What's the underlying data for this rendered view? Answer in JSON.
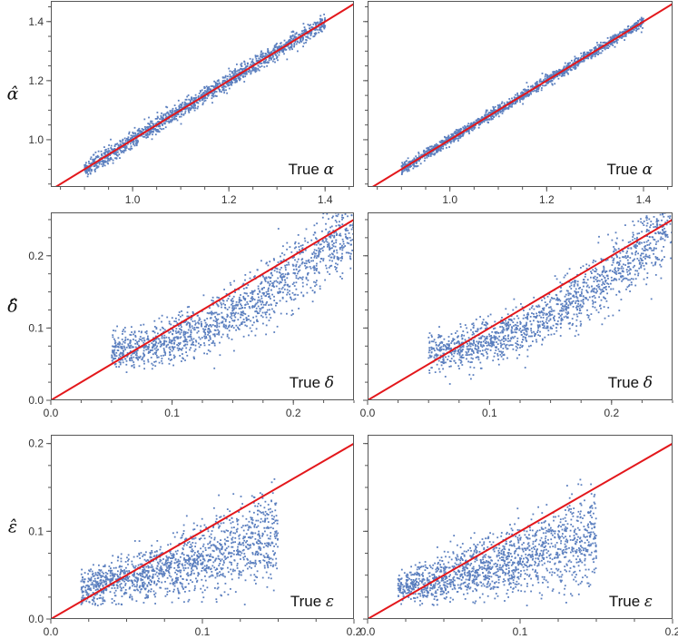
{
  "colors": {
    "points": "#5b7fbf",
    "fit_line": "#e3171b",
    "frame": "#555555"
  },
  "chart_data": [
    {
      "type": "scatter",
      "id": "alpha-left",
      "ylabel": "α̂",
      "annotation": "True ",
      "annotation_symbol": "α",
      "xlim": [
        0.83,
        1.46
      ],
      "ylim": [
        0.84,
        1.47
      ],
      "xticks": [
        "1.0",
        "1.2",
        "1.4"
      ],
      "yticks": [
        "1.0",
        "1.2",
        "1.4"
      ],
      "x_range": [
        0.9,
        1.4
      ],
      "n_points": 1500,
      "noise": 0.014,
      "bias": "none",
      "diagonal": [
        [
          0.83,
          0.83
        ],
        [
          1.46,
          1.46
        ]
      ]
    },
    {
      "type": "scatter",
      "id": "alpha-right",
      "ylabel": "",
      "annotation": "True ",
      "annotation_symbol": "α",
      "xlim": [
        0.83,
        1.46
      ],
      "ylim": [
        0.84,
        1.47
      ],
      "xticks": [
        "1.0",
        "1.2",
        "1.4"
      ],
      "yticks": [],
      "x_range": [
        0.9,
        1.4
      ],
      "n_points": 1500,
      "noise": 0.009,
      "bias": "none",
      "diagonal": [
        [
          0.83,
          0.83
        ],
        [
          1.46,
          1.46
        ]
      ]
    },
    {
      "type": "scatter",
      "id": "delta-left",
      "ylabel": "δ̂",
      "annotation": "True ",
      "annotation_symbol": "δ",
      "xlim": [
        0.0,
        0.25
      ],
      "ylim": [
        0.0,
        0.26
      ],
      "xticks": [
        "0.0",
        "0.1",
        "0.2"
      ],
      "yticks": [
        "0.0",
        "0.1",
        "0.2"
      ],
      "x_range": [
        0.05,
        0.25
      ],
      "n_points": 1500,
      "noise": 0.022,
      "bias": "curve",
      "diagonal": [
        [
          0.0,
          0.0
        ],
        [
          0.25,
          0.25
        ]
      ]
    },
    {
      "type": "scatter",
      "id": "delta-right",
      "ylabel": "",
      "annotation": "True ",
      "annotation_symbol": "δ",
      "xlim": [
        0.0,
        0.25
      ],
      "ylim": [
        0.0,
        0.26
      ],
      "xticks": [
        "0.0",
        "0.1",
        "0.2"
      ],
      "yticks": [],
      "x_range": [
        0.05,
        0.25
      ],
      "n_points": 1500,
      "noise": 0.022,
      "bias": "curve",
      "diagonal": [
        [
          0.0,
          0.0
        ],
        [
          0.25,
          0.25
        ]
      ]
    },
    {
      "type": "scatter",
      "id": "eps-left",
      "ylabel": "ε̂",
      "annotation": "True ",
      "annotation_symbol": "ε",
      "xlim": [
        0.0,
        0.2
      ],
      "ylim": [
        0.0,
        0.21
      ],
      "xticks": [
        "0.0",
        "0.1",
        "0.2"
      ],
      "yticks": [
        "0.0",
        "0.1",
        "0.2"
      ],
      "x_range": [
        0.02,
        0.15
      ],
      "n_points": 1500,
      "noise": 0.02,
      "bias": "flat",
      "diagonal": [
        [
          0.0,
          0.0
        ],
        [
          0.2,
          0.2
        ]
      ]
    },
    {
      "type": "scatter",
      "id": "eps-right",
      "ylabel": "",
      "annotation": "True ",
      "annotation_symbol": "ε",
      "xlim": [
        0.0,
        0.2
      ],
      "ylim": [
        0.0,
        0.21
      ],
      "xticks": [
        "0.0",
        "0.1",
        "0.2"
      ],
      "yticks": [],
      "x_range": [
        0.02,
        0.15
      ],
      "n_points": 1500,
      "noise": 0.02,
      "bias": "flat",
      "diagonal": [
        [
          0.0,
          0.0
        ],
        [
          0.2,
          0.2
        ]
      ]
    }
  ]
}
